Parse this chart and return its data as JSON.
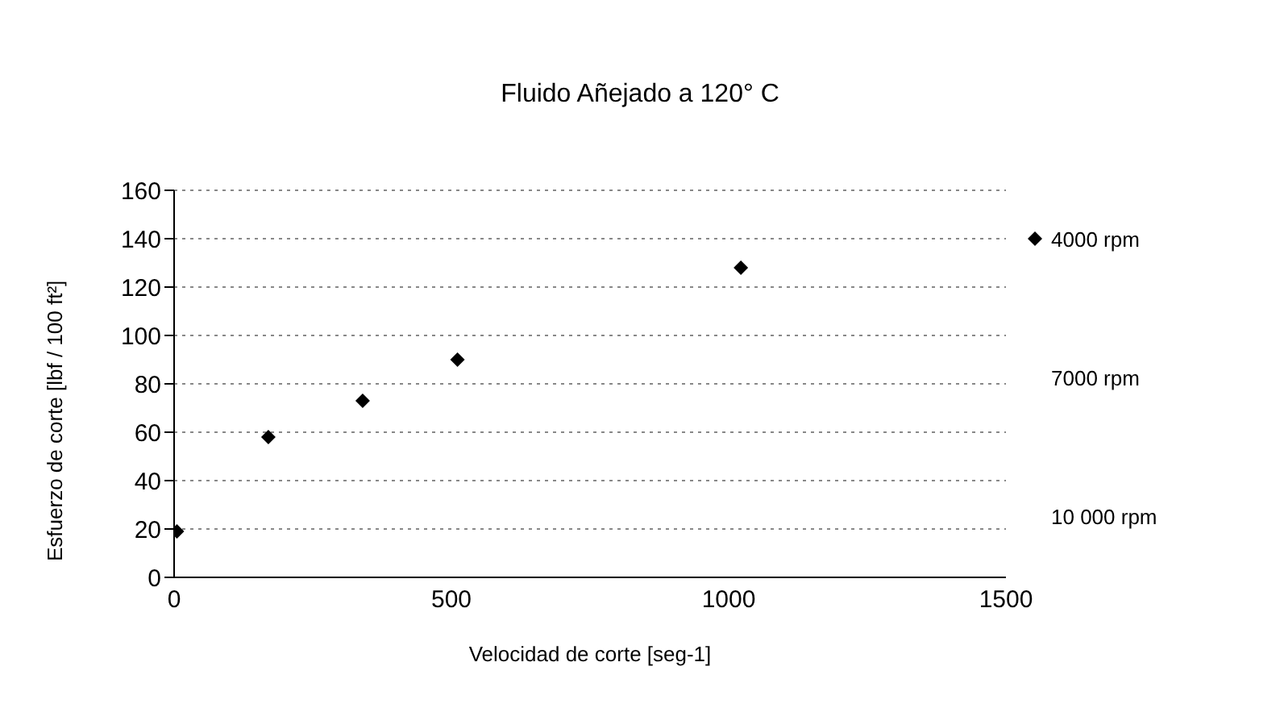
{
  "chart_data": {
    "type": "scatter",
    "title": "Fluido Añejado a 120° C",
    "xlabel": "Velocidad de corte [seg-1]",
    "ylabel": "Esfuerzo de corte [lbf / 100 ft²]",
    "x": [
      5.1,
      170,
      340,
      511,
      1022
    ],
    "series": [
      {
        "name": "4000 rpm",
        "color": "#000000",
        "marker": "diamond",
        "values": [
          19,
          58,
          73,
          90,
          128
        ]
      },
      {
        "name": "7000 rpm",
        "color": "#000000",
        "marker": "none",
        "values": [
          null,
          null,
          null,
          null,
          null
        ]
      },
      {
        "name": "10 000 rpm",
        "color": "#000000",
        "marker": "none",
        "values": [
          null,
          null,
          null,
          null,
          null
        ]
      }
    ],
    "xlim": [
      0,
      1500
    ],
    "xticks": [
      0,
      500,
      1000,
      1500
    ],
    "ylim": [
      0,
      160
    ],
    "yticks": [
      0,
      20,
      40,
      60,
      80,
      100,
      120,
      140,
      160
    ],
    "grid": "y",
    "legend": "right"
  }
}
